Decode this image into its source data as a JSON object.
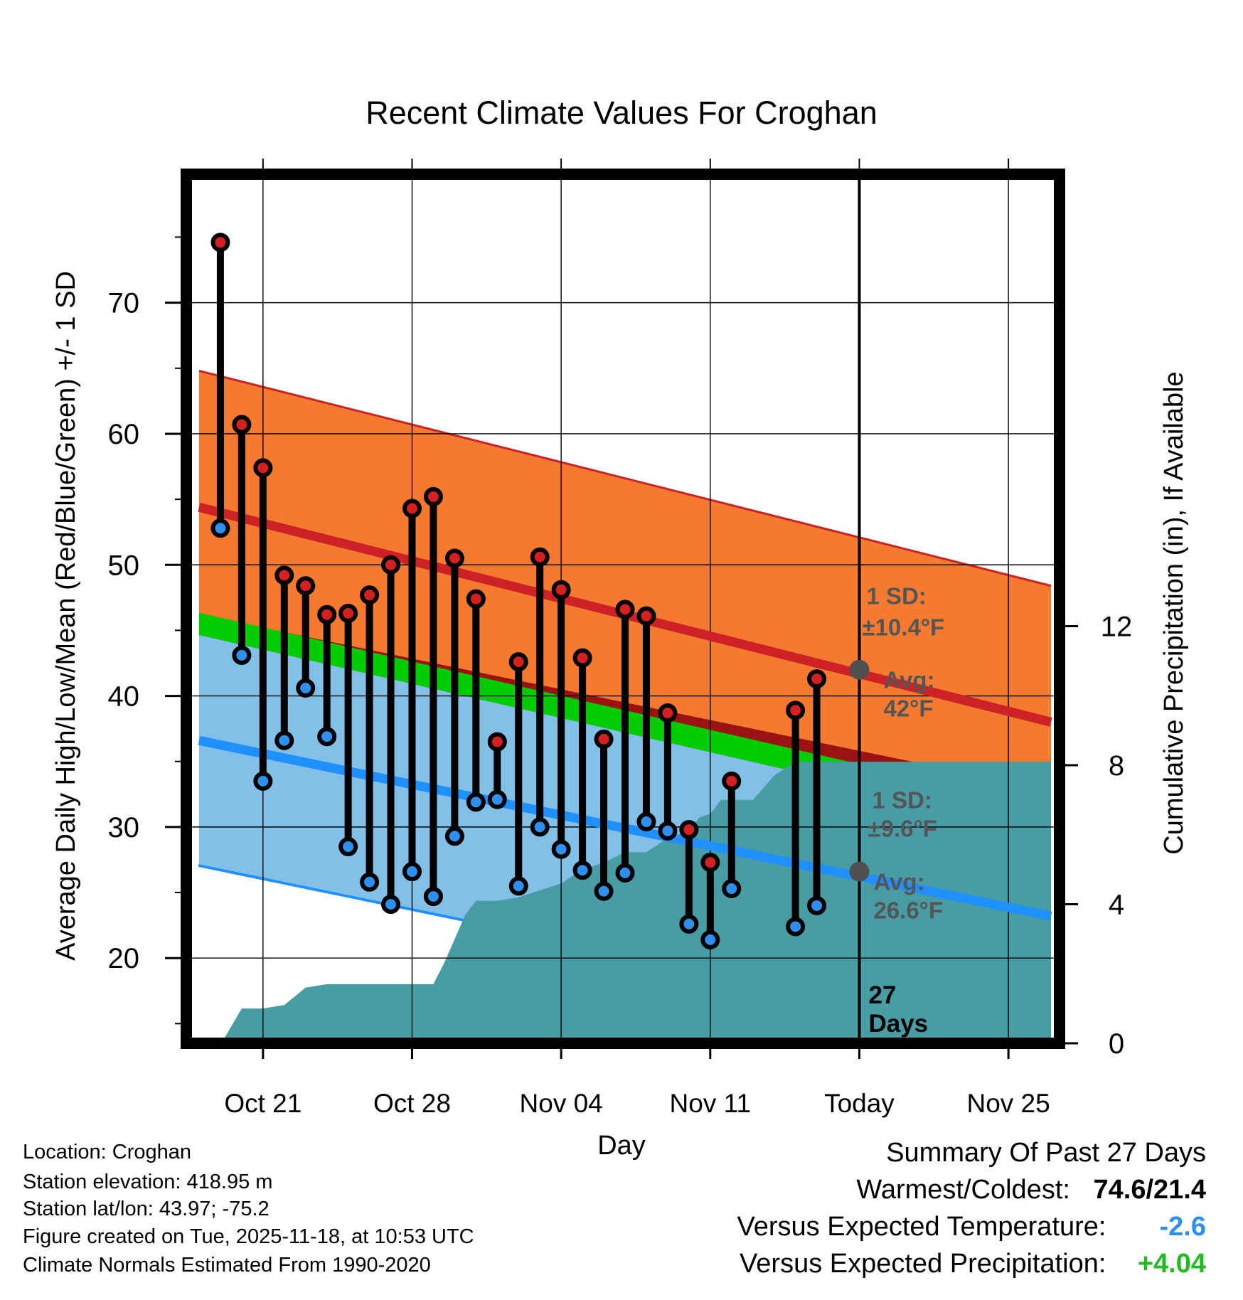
{
  "chart_data": {
    "type": "line",
    "title": "Recent Climate Values For Croghan",
    "xlabel": "Day",
    "ylabel": "Average Daily High/Low/Mean (Red/Blue/Green) +/- 1 SD",
    "y2label": "Cumulative Precipitation (in), If Available",
    "xlim": [
      -3.6,
      37.4
    ],
    "ylim": [
      13.5,
      79.8
    ],
    "y2lim": [
      0,
      25
    ],
    "x_ticks": [
      {
        "x": 0,
        "label": "Oct 21"
      },
      {
        "x": 7,
        "label": "Oct 28"
      },
      {
        "x": 14,
        "label": "Nov 04"
      },
      {
        "x": 21,
        "label": "Nov 11"
      },
      {
        "x": 28,
        "label": "Today"
      },
      {
        "x": 35,
        "label": "Nov 25"
      }
    ],
    "y_ticks": [
      20,
      30,
      40,
      50,
      60,
      70
    ],
    "y2_ticks": [
      0,
      4,
      8,
      12
    ],
    "today_x": 28,
    "normals": {
      "high_mean": {
        "start": [
          -3,
          54.4
        ],
        "end": [
          37,
          38.0
        ]
      },
      "high_sd": 10.4,
      "low_mean": {
        "start": [
          -3,
          36.6
        ],
        "end": [
          37,
          23.2
        ]
      },
      "low_sd": 9.6,
      "mean_line": {
        "start": [
          -3,
          45.5
        ],
        "end": [
          37,
          30.6
        ]
      }
    },
    "observed": {
      "days": [
        -2,
        -1,
        0,
        1,
        2,
        3,
        4,
        5,
        6,
        7,
        8,
        9,
        10,
        11,
        12,
        13,
        14,
        15,
        16,
        17,
        18,
        19,
        20,
        21,
        22,
        25,
        26
      ],
      "high": [
        74.6,
        60.7,
        57.4,
        49.2,
        48.4,
        46.2,
        46.3,
        47.7,
        50.0,
        54.3,
        55.2,
        50.5,
        47.4,
        36.5,
        42.6,
        50.6,
        48.1,
        42.9,
        36.7,
        46.6,
        46.1,
        38.7,
        29.8,
        27.3,
        33.5,
        38.9,
        41.3
      ],
      "low": [
        52.8,
        43.1,
        33.5,
        36.6,
        40.6,
        36.9,
        28.5,
        25.8,
        24.1,
        26.6,
        24.7,
        29.3,
        31.9,
        32.1,
        25.5,
        30.0,
        28.3,
        26.7,
        25.1,
        26.5,
        30.4,
        29.7,
        22.6,
        21.4,
        25.3,
        22.4,
        24.0
      ]
    },
    "precip": {
      "days": [
        -1.95,
        -1,
        0,
        1,
        1.4,
        2,
        3,
        4,
        5,
        6,
        7,
        7.5,
        8,
        8.5,
        9,
        9.5,
        10,
        11,
        12,
        13,
        14,
        15,
        16,
        17,
        18,
        19,
        20,
        20.5,
        21,
        21.5,
        22,
        23,
        24,
        25,
        26,
        27,
        28,
        29,
        30,
        31,
        32,
        33,
        34,
        35,
        36,
        37
      ],
      "cumulative": [
        0,
        1.0,
        1.0,
        1.1,
        1.3,
        1.6,
        1.7,
        1.7,
        1.7,
        1.7,
        1.7,
        1.7,
        1.7,
        2.3,
        3.0,
        3.7,
        4.1,
        4.1,
        4.2,
        4.4,
        4.6,
        5.0,
        5.2,
        5.5,
        5.5,
        5.9,
        6.1,
        6.5,
        6.6,
        7.0,
        7.0,
        7.0,
        7.7,
        8.1,
        8.1,
        8.1,
        8.1,
        8.1,
        8.1,
        8.1,
        8.1,
        8.1,
        8.1,
        8.1,
        8.1,
        8.1
      ]
    },
    "annotations": {
      "high_sd_label": "1 SD:",
      "high_sd_value": "±10.4°F",
      "high_avg_label": "Avg:",
      "high_avg_value": "42°F",
      "high_avg": 42,
      "low_sd_label": "1 SD:",
      "low_sd_value": "±9.6°F",
      "low_avg_label": "Avg:",
      "low_avg_value": "26.6°F",
      "low_avg": 26.6,
      "days_count": "27",
      "days_word": "Days"
    },
    "colors": {
      "high_band": "#f47a30",
      "high_line": "#cc2226",
      "low_band": "#82c0e8",
      "low_line": "#1e90ff",
      "mean_band": "#00cc00",
      "overlap": "#9b1212",
      "precip": "#489ca4",
      "marker_high": "#d42020",
      "marker_low": "#2e8fec",
      "avg_dot": "#505050"
    }
  },
  "footer": {
    "location": "Location: Croghan",
    "elevation": "Station elevation: 418.95 m",
    "latlon": "Station lat/lon: 43.97; -75.2",
    "created": "Figure created on Tue, 2025-11-18, at 10:53 UTC",
    "normals": "Climate Normals Estimated From 1990-2020"
  },
  "summary": {
    "title": "Summary Of Past 27 Days",
    "warmest_label": "Warmest/Coldest:",
    "warmest_value": "74.6/21.4",
    "temp_label": "Versus Expected Temperature:",
    "temp_value": "-2.6",
    "temp_color": "#2e8fec",
    "precip_label": "Versus Expected Precipitation:",
    "precip_value": "+4.04",
    "precip_color": "#22bb22"
  }
}
